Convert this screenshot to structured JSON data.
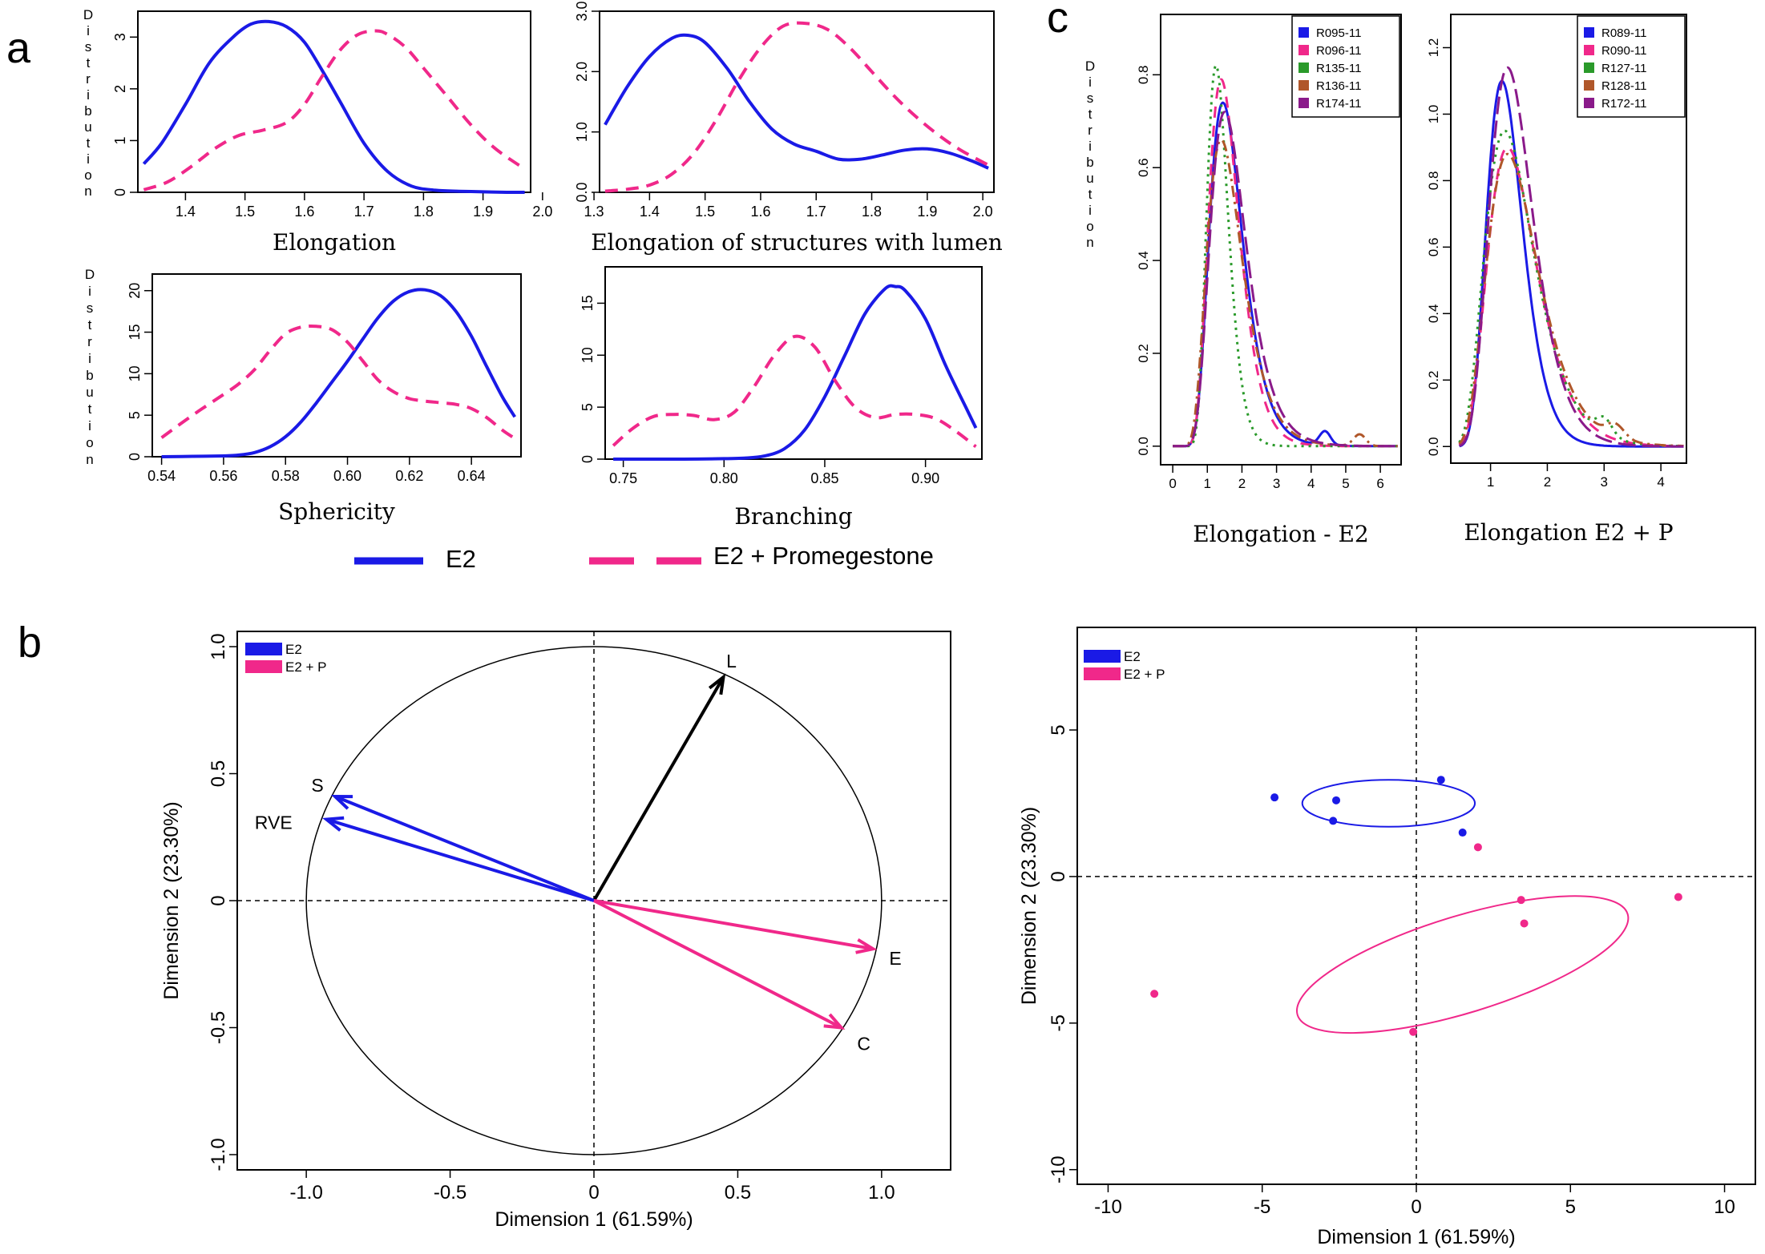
{
  "panel_labels": [
    "a",
    "b",
    "c"
  ],
  "colors": {
    "blue": "#1a1ae6",
    "pink": "#f0288a",
    "green": "#2a9a2a",
    "brown": "#b0572a",
    "purple": "#8a1a8a",
    "black": "#000000"
  },
  "panel_a": {
    "ylabel": "Distribution",
    "legend": {
      "entries": [
        {
          "name": "E2",
          "color": "#1a1ae6",
          "style": "solid"
        },
        {
          "name": "E2 + Promegestone",
          "color": "#f0288a",
          "style": "dashed"
        }
      ]
    }
  },
  "panel_b": {
    "legend": [
      {
        "name": "E2",
        "color": "#1a1ae6"
      },
      {
        "name": "E2 + P",
        "color": "#f0288a"
      }
    ]
  },
  "panel_c": {
    "ylabel": "Distribution"
  },
  "chart_data": [
    {
      "id": "a1",
      "type": "line",
      "xlabel": "Elongation",
      "ylabel": "Distribution",
      "xlim": [
        1.32,
        1.98
      ],
      "ylim": [
        0,
        3.5
      ],
      "xticks": [
        "1.4",
        "1.5",
        "1.6",
        "1.7",
        "1.8",
        "1.9",
        "2.0"
      ],
      "yticks": [
        "0",
        "1",
        "2",
        "3"
      ],
      "series": [
        {
          "name": "E2",
          "style": "solid",
          "color": "#1a1ae6",
          "x": [
            1.33,
            1.36,
            1.4,
            1.44,
            1.48,
            1.51,
            1.54,
            1.57,
            1.6,
            1.63,
            1.66,
            1.7,
            1.74,
            1.78,
            1.82,
            1.86,
            1.9,
            1.94,
            1.97
          ],
          "y": [
            0.55,
            0.95,
            1.7,
            2.5,
            3.0,
            3.25,
            3.3,
            3.2,
            2.9,
            2.35,
            1.75,
            0.95,
            0.4,
            0.12,
            0.04,
            0.02,
            0.01,
            0.0,
            0.0
          ]
        },
        {
          "name": "E2 + Promegestone",
          "style": "dashed",
          "color": "#f0288a",
          "x": [
            1.33,
            1.37,
            1.41,
            1.45,
            1.49,
            1.53,
            1.57,
            1.6,
            1.63,
            1.66,
            1.69,
            1.72,
            1.74,
            1.77,
            1.8,
            1.84,
            1.88,
            1.92,
            1.97
          ],
          "y": [
            0.05,
            0.2,
            0.5,
            0.85,
            1.1,
            1.2,
            1.35,
            1.7,
            2.25,
            2.75,
            3.05,
            3.12,
            3.05,
            2.8,
            2.4,
            1.85,
            1.3,
            0.85,
            0.45
          ]
        }
      ]
    },
    {
      "id": "a2",
      "type": "line",
      "xlabel": "Elongation of structures with lumen",
      "ylabel": "",
      "xlim": [
        1.31,
        2.02
      ],
      "ylim": [
        0,
        3.0
      ],
      "xticks": [
        "1.3",
        "1.4",
        "1.5",
        "1.6",
        "1.7",
        "1.8",
        "1.9",
        "2.0"
      ],
      "yticks": [
        "0.0",
        "1.0",
        "2.0",
        "3.0"
      ],
      "series": [
        {
          "name": "E2",
          "style": "solid",
          "color": "#1a1ae6",
          "x": [
            1.32,
            1.36,
            1.4,
            1.44,
            1.47,
            1.5,
            1.54,
            1.58,
            1.62,
            1.66,
            1.7,
            1.74,
            1.78,
            1.82,
            1.86,
            1.9,
            1.94,
            1.98,
            2.01
          ],
          "y": [
            1.12,
            1.75,
            2.25,
            2.55,
            2.6,
            2.48,
            2.05,
            1.5,
            1.05,
            0.8,
            0.68,
            0.55,
            0.55,
            0.62,
            0.7,
            0.72,
            0.65,
            0.52,
            0.4
          ]
        },
        {
          "name": "E2 + Promegestone",
          "style": "dashed",
          "color": "#f0288a",
          "x": [
            1.32,
            1.36,
            1.4,
            1.44,
            1.48,
            1.52,
            1.56,
            1.6,
            1.64,
            1.68,
            1.72,
            1.76,
            1.8,
            1.84,
            1.88,
            1.92,
            1.96,
            2.01
          ],
          "y": [
            0.02,
            0.05,
            0.12,
            0.3,
            0.65,
            1.2,
            1.85,
            2.4,
            2.75,
            2.8,
            2.7,
            2.4,
            2.0,
            1.6,
            1.25,
            0.95,
            0.7,
            0.45
          ]
        }
      ]
    },
    {
      "id": "a3",
      "type": "line",
      "xlabel": "Sphericity",
      "ylabel": "Distribution",
      "xlim": [
        0.537,
        0.656
      ],
      "ylim": [
        0,
        22
      ],
      "xticks": [
        "0.54",
        "0.56",
        "0.58",
        "0.60",
        "0.62",
        "0.64"
      ],
      "yticks": [
        "0",
        "5",
        "10",
        "15",
        "20"
      ],
      "series": [
        {
          "name": "E2",
          "style": "solid",
          "color": "#1a1ae6",
          "x": [
            0.54,
            0.55,
            0.56,
            0.565,
            0.57,
            0.575,
            0.58,
            0.585,
            0.59,
            0.595,
            0.6,
            0.605,
            0.61,
            0.615,
            0.62,
            0.625,
            0.63,
            0.635,
            0.64,
            0.645,
            0.65,
            0.654
          ],
          "y": [
            0.0,
            0.05,
            0.1,
            0.2,
            0.5,
            1.2,
            2.4,
            4.2,
            6.5,
            9.0,
            11.5,
            14.2,
            16.8,
            18.8,
            19.9,
            20.1,
            19.4,
            17.5,
            14.5,
            10.8,
            7.2,
            4.8
          ]
        },
        {
          "name": "E2 + Promegestone",
          "style": "dashed",
          "color": "#f0288a",
          "x": [
            0.54,
            0.55,
            0.56,
            0.565,
            0.57,
            0.575,
            0.58,
            0.585,
            0.59,
            0.595,
            0.6,
            0.605,
            0.61,
            0.615,
            0.62,
            0.625,
            0.63,
            0.635,
            0.64,
            0.645,
            0.65,
            0.654
          ],
          "y": [
            2.3,
            5.0,
            7.5,
            8.8,
            10.5,
            12.8,
            14.8,
            15.6,
            15.7,
            15.3,
            13.8,
            11.5,
            9.2,
            7.8,
            7.0,
            6.7,
            6.5,
            6.3,
            5.8,
            4.7,
            3.2,
            2.2
          ]
        }
      ]
    },
    {
      "id": "a4",
      "type": "line",
      "xlabel": "Branching",
      "ylabel": "",
      "xlim": [
        0.741,
        0.928
      ],
      "ylim": [
        0,
        18.5
      ],
      "xticks": [
        "0.75",
        "0.80",
        "0.85",
        "0.90"
      ],
      "yticks": [
        "0",
        "5",
        "10",
        "15"
      ],
      "series": [
        {
          "name": "E2",
          "style": "solid",
          "color": "#1a1ae6",
          "x": [
            0.745,
            0.76,
            0.78,
            0.8,
            0.81,
            0.82,
            0.83,
            0.84,
            0.85,
            0.86,
            0.87,
            0.88,
            0.885,
            0.89,
            0.9,
            0.91,
            0.92,
            0.925
          ],
          "y": [
            0.0,
            0.0,
            0.0,
            0.05,
            0.1,
            0.3,
            1.0,
            2.8,
            6.0,
            10.0,
            14.0,
            16.4,
            16.6,
            16.2,
            13.5,
            9.0,
            5.0,
            3.0
          ]
        },
        {
          "name": "E2 + Promegestone",
          "style": "dashed",
          "color": "#f0288a",
          "x": [
            0.745,
            0.755,
            0.765,
            0.775,
            0.785,
            0.795,
            0.805,
            0.815,
            0.825,
            0.835,
            0.845,
            0.855,
            0.865,
            0.875,
            0.885,
            0.895,
            0.905,
            0.915,
            0.925
          ],
          "y": [
            1.3,
            3.0,
            4.1,
            4.3,
            4.2,
            3.8,
            4.5,
            7.0,
            10.0,
            11.8,
            10.8,
            7.6,
            5.0,
            4.0,
            4.3,
            4.3,
            3.9,
            2.7,
            1.2
          ]
        }
      ]
    },
    {
      "id": "b1",
      "type": "line",
      "subtype": "pca-correlation-circle",
      "xlabel": "Dimension 1 (61.59%)",
      "ylabel": "Dimension 2 (23.30%)",
      "xlim": [
        -1.24,
        1.24
      ],
      "ylim": [
        -1.06,
        1.06
      ],
      "xticks": [
        "-1.0",
        "-0.5",
        "0",
        "0.5",
        "1.0"
      ],
      "yticks": [
        "-1.0",
        "-0.5",
        "0",
        "0.5",
        "1.0"
      ],
      "vectors": [
        {
          "label": "L",
          "x": 0.45,
          "y": 0.88,
          "group": "none",
          "color": "#000000"
        },
        {
          "label": "S",
          "x": -0.9,
          "y": 0.41,
          "group": "E2",
          "color": "#1a1ae6"
        },
        {
          "label": "RVE",
          "x": -0.93,
          "y": 0.32,
          "group": "E2",
          "color": "#1a1ae6"
        },
        {
          "label": "E",
          "x": 0.97,
          "y": -0.19,
          "group": "E2 + P",
          "color": "#f0288a"
        },
        {
          "label": "C",
          "x": 0.86,
          "y": -0.5,
          "group": "E2 + P",
          "color": "#f0288a"
        }
      ]
    },
    {
      "id": "b2",
      "type": "scatter",
      "xlabel": "Dimension 1 (61.59%)",
      "ylabel": "Dimension 2 (23.30%)",
      "xlim": [
        -11,
        11
      ],
      "ylim": [
        -10.5,
        8.5
      ],
      "xticks": [
        "-10",
        "-5",
        "0",
        "5",
        "10"
      ],
      "yticks": [
        "-10",
        "-5",
        "0",
        "5"
      ],
      "series": [
        {
          "name": "E2",
          "color": "#1a1ae6",
          "points": [
            [
              -4.6,
              2.7
            ],
            [
              -2.6,
              2.6
            ],
            [
              -2.7,
              1.9
            ],
            [
              0.8,
              3.3
            ],
            [
              1.5,
              1.5
            ]
          ],
          "ellipse": {
            "cx": -0.9,
            "cy": 2.5,
            "rx": 2.8,
            "ry": 0.8,
            "angle_deg": 0
          }
        },
        {
          "name": "E2 + P",
          "color": "#f0288a",
          "points": [
            [
              2.0,
              1.0
            ],
            [
              3.4,
              -0.8
            ],
            [
              3.5,
              -1.6
            ],
            [
              8.5,
              -0.7
            ],
            [
              -8.5,
              -4.0
            ],
            [
              -0.1,
              -5.3
            ]
          ],
          "ellipse": {
            "cx": 1.5,
            "cy": -3.0,
            "rx": 5.6,
            "ry": 1.65,
            "angle_deg": 17
          }
        }
      ]
    },
    {
      "id": "c1",
      "type": "line",
      "xlabel": "Elongation - E2",
      "ylabel": "Distribution",
      "xlim": [
        -0.35,
        6.6
      ],
      "ylim": [
        -0.04,
        0.93
      ],
      "xticks": [
        "0",
        "1",
        "2",
        "3",
        "4",
        "5",
        "6"
      ],
      "yticks": [
        "0.0",
        "0.2",
        "0.4",
        "0.6",
        "0.8"
      ],
      "series": [
        {
          "name": "R095-11",
          "color": "#1a1ae6",
          "style": "solid",
          "peak_x": 1.45,
          "peak_y": 0.74,
          "tail": 1.0
        },
        {
          "name": "R096-11",
          "color": "#f0288a",
          "style": "dashed",
          "peak_x": 1.4,
          "peak_y": 0.79,
          "tail": 0.95
        },
        {
          "name": "R135-11",
          "color": "#2a9a2a",
          "style": "dotted",
          "peak_x": 1.25,
          "peak_y": 0.82,
          "tail": 0.75
        },
        {
          "name": "R136-11",
          "color": "#b0572a",
          "style": "dashdot",
          "peak_x": 1.4,
          "peak_y": 0.66,
          "tail": 1.1
        },
        {
          "name": "R174-11",
          "color": "#8a1a8a",
          "style": "longdash",
          "peak_x": 1.5,
          "peak_y": 0.72,
          "tail": 1.05
        }
      ]
    },
    {
      "id": "c2",
      "type": "line",
      "xlabel": "Elongation E2 + P",
      "ylabel": "",
      "xlim": [
        0.3,
        4.45
      ],
      "ylim": [
        -0.05,
        1.3
      ],
      "xticks": [
        "1",
        "2",
        "3",
        "4"
      ],
      "yticks": [
        "0.0",
        "0.2",
        "0.4",
        "0.6",
        "0.8",
        "1.0",
        "1.2"
      ],
      "series": [
        {
          "name": "R089-11",
          "color": "#1a1ae6",
          "style": "solid",
          "peak_x": 1.2,
          "peak_y": 1.1,
          "tail": 0.8
        },
        {
          "name": "R090-11",
          "color": "#f0288a",
          "style": "dashed",
          "peak_x": 1.3,
          "peak_y": 0.9,
          "tail": 1.0
        },
        {
          "name": "R127-11",
          "color": "#2a9a2a",
          "style": "dotted",
          "peak_x": 1.25,
          "peak_y": 0.95,
          "tail": 1.05
        },
        {
          "name": "R128-11",
          "color": "#b0572a",
          "style": "dashdot",
          "peak_x": 1.3,
          "peak_y": 0.88,
          "tail": 1.05
        },
        {
          "name": "R172-11",
          "color": "#8a1a8a",
          "style": "longdash",
          "peak_x": 1.3,
          "peak_y": 1.14,
          "tail": 0.9
        }
      ]
    }
  ]
}
